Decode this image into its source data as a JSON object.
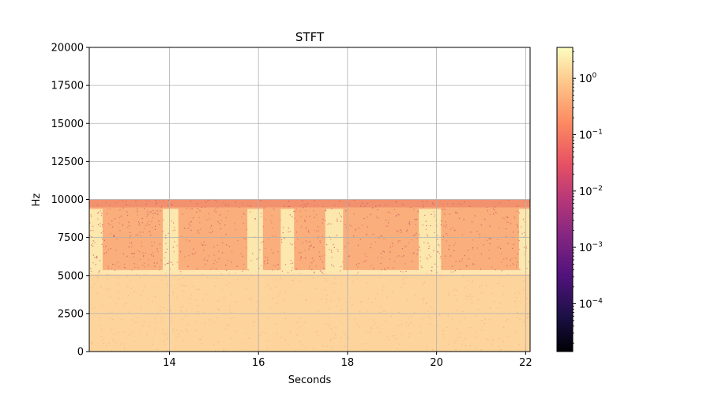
{
  "chart_data": {
    "type": "heatmap",
    "title": "STFT",
    "xlabel": "Seconds",
    "ylabel": "Hz",
    "xlim": [
      12.2,
      22.1
    ],
    "ylim": [
      0,
      20000
    ],
    "x_ticks": [
      14,
      16,
      18,
      20,
      22
    ],
    "y_ticks": [
      0,
      2500,
      5000,
      7500,
      10000,
      12500,
      15000,
      17500,
      20000
    ],
    "grid": true,
    "colormap": "magma",
    "color_scale": "log",
    "colorbar": {
      "ticks": [
        {
          "value": 1,
          "base": "10",
          "exp": "0"
        },
        {
          "value": 0.1,
          "base": "10",
          "exp": "−1"
        },
        {
          "value": 0.01,
          "base": "10",
          "exp": "−2"
        },
        {
          "value": 0.001,
          "base": "10",
          "exp": "−3"
        },
        {
          "value": 0.0001,
          "base": "10",
          "exp": "−4"
        }
      ],
      "range_log10": [
        -4.85,
        0.55
      ]
    },
    "frequency_content_max_hz": 10000,
    "band_edge_hz": 5200,
    "bright_segments_seconds": [
      [
        12.2,
        12.5
      ],
      [
        13.85,
        14.2
      ],
      [
        15.75,
        16.1
      ],
      [
        16.5,
        16.8
      ],
      [
        17.5,
        17.9
      ],
      [
        19.6,
        20.1
      ],
      [
        21.85,
        22.1
      ]
    ]
  }
}
